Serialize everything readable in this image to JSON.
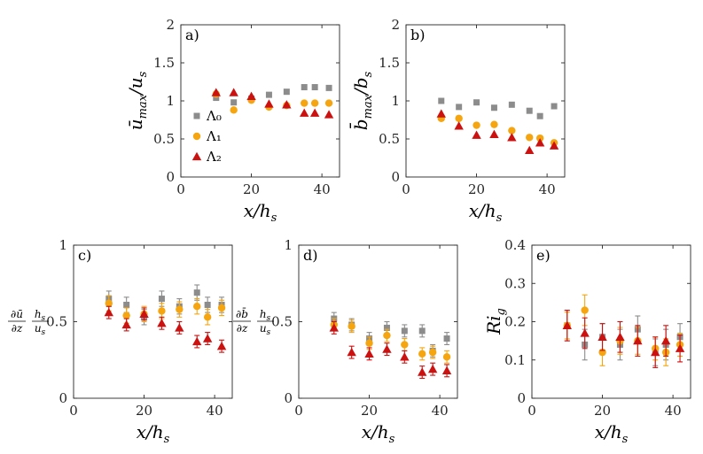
{
  "colors": {
    "L0": "#8c8c8c",
    "L1": "#f5a50f",
    "L2": "#cc1111",
    "axis": "#262626"
  },
  "chart_data": [
    {
      "type": "scatter",
      "panel": "a)",
      "xlabel": "x/h_s",
      "ylabel": "ū_max/u_s",
      "xlim": [
        0,
        45
      ],
      "ylim": [
        0,
        2
      ],
      "xticks": [
        0,
        20,
        40
      ],
      "yticks": [
        0,
        0.5,
        1,
        1.5,
        2
      ],
      "xticklabels": [
        "0",
        "20",
        "40"
      ],
      "yticklabels": [
        "0",
        "0.5",
        "1",
        "1.5",
        "2"
      ],
      "legend": {
        "position": "left",
        "entries": [
          "Λ₀",
          "Λ₁",
          "Λ₂"
        ]
      },
      "series": [
        {
          "name": "Λ₀",
          "marker": "square",
          "x": [
            10,
            15,
            20,
            25,
            30,
            35,
            38,
            42
          ],
          "y": [
            1.04,
            0.98,
            1.03,
            1.08,
            1.12,
            1.18,
            1.18,
            1.17
          ]
        },
        {
          "name": "Λ₁",
          "marker": "circle",
          "x": [
            10,
            15,
            20,
            25,
            30,
            35,
            38,
            42
          ],
          "y": [
            1.09,
            0.88,
            1.01,
            0.92,
            0.94,
            0.97,
            0.97,
            0.97
          ]
        },
        {
          "name": "Λ₂",
          "marker": "triangle",
          "x": [
            10,
            15,
            20,
            25,
            30,
            35,
            38,
            42
          ],
          "y": [
            1.11,
            1.11,
            1.06,
            0.96,
            0.95,
            0.84,
            0.84,
            0.82
          ]
        }
      ]
    },
    {
      "type": "scatter",
      "panel": "b)",
      "xlabel": "x/h_s",
      "ylabel": "b̄_max/b_s",
      "xlim": [
        0,
        45
      ],
      "ylim": [
        0,
        2
      ],
      "xticks": [
        0,
        20,
        40
      ],
      "yticks": [
        0,
        0.5,
        1,
        1.5,
        2
      ],
      "xticklabels": [
        "0",
        "20",
        "40"
      ],
      "yticklabels": [
        "0",
        "0.5",
        "1",
        "1.5",
        "2"
      ],
      "series": [
        {
          "name": "Λ₀",
          "marker": "square",
          "x": [
            10,
            15,
            20,
            25,
            30,
            35,
            38,
            42
          ],
          "y": [
            1.0,
            0.92,
            0.98,
            0.91,
            0.95,
            0.87,
            0.8,
            0.93
          ]
        },
        {
          "name": "Λ₁",
          "marker": "circle",
          "x": [
            10,
            15,
            20,
            25,
            30,
            35,
            38,
            42
          ],
          "y": [
            0.77,
            0.77,
            0.68,
            0.69,
            0.61,
            0.52,
            0.51,
            0.45
          ]
        },
        {
          "name": "Λ₂",
          "marker": "triangle",
          "x": [
            10,
            15,
            20,
            25,
            30,
            35,
            38,
            42
          ],
          "y": [
            0.83,
            0.67,
            0.55,
            0.56,
            0.52,
            0.35,
            0.45,
            0.41
          ]
        }
      ]
    },
    {
      "type": "scatter",
      "panel": "c)",
      "xlabel": "x/h_s",
      "ylabel": "(∂ū/∂z) h_s/u_s",
      "ylabel_parts": {
        "num1": "∂ū",
        "den1": "∂z",
        "num2": "h",
        "num2sub": "s",
        "den2": "u",
        "den2sub": "s"
      },
      "xlim": [
        0,
        45
      ],
      "ylim": [
        0,
        1
      ],
      "xticks": [
        0,
        20,
        40
      ],
      "yticks": [
        0,
        0.5,
        1
      ],
      "xticklabels": [
        "0",
        "20",
        "40"
      ],
      "yticklabels": [
        "0",
        "0.5",
        "1"
      ],
      "errorbars": true,
      "series": [
        {
          "name": "Λ₀",
          "marker": "square",
          "x": [
            10,
            15,
            20,
            25,
            30,
            35,
            38,
            42
          ],
          "y": [
            0.65,
            0.61,
            0.53,
            0.65,
            0.6,
            0.69,
            0.61,
            0.61
          ],
          "err": [
            0.05,
            0.05,
            0.05,
            0.05,
            0.05,
            0.05,
            0.05,
            0.05
          ]
        },
        {
          "name": "Λ₁",
          "marker": "circle",
          "x": [
            10,
            15,
            20,
            25,
            30,
            35,
            38,
            42
          ],
          "y": [
            0.62,
            0.54,
            0.55,
            0.57,
            0.58,
            0.6,
            0.53,
            0.59
          ],
          "err": [
            0.05,
            0.05,
            0.05,
            0.05,
            0.05,
            0.05,
            0.05,
            0.05
          ]
        },
        {
          "name": "Λ₂",
          "marker": "triangle",
          "x": [
            10,
            15,
            20,
            25,
            30,
            35,
            38,
            42
          ],
          "y": [
            0.56,
            0.48,
            0.55,
            0.49,
            0.46,
            0.37,
            0.39,
            0.34
          ],
          "err": [
            0.04,
            0.04,
            0.04,
            0.04,
            0.04,
            0.04,
            0.04,
            0.04
          ]
        }
      ]
    },
    {
      "type": "scatter",
      "panel": "d)",
      "xlabel": "x/h_s",
      "ylabel": "(∂b̄/∂z) h_s/u_s",
      "ylabel_parts": {
        "num1": "∂b̄",
        "den1": "∂z",
        "num2": "h",
        "num2sub": "s",
        "den2": "u",
        "den2sub": "s"
      },
      "xlim": [
        0,
        45
      ],
      "ylim": [
        0,
        1
      ],
      "xticks": [
        0,
        20,
        40
      ],
      "yticks": [
        0,
        0.5,
        1
      ],
      "xticklabels": [
        "0",
        "20",
        "40"
      ],
      "yticklabels": [
        "0",
        "0.5",
        "1"
      ],
      "errorbars": true,
      "series": [
        {
          "name": "Λ₀",
          "marker": "square",
          "x": [
            10,
            15,
            20,
            25,
            30,
            35,
            38,
            42
          ],
          "y": [
            0.52,
            0.48,
            0.39,
            0.46,
            0.44,
            0.44,
            0.31,
            0.39
          ],
          "err": [
            0.04,
            0.04,
            0.04,
            0.04,
            0.04,
            0.04,
            0.04,
            0.04
          ]
        },
        {
          "name": "Λ₁",
          "marker": "circle",
          "x": [
            10,
            15,
            20,
            25,
            30,
            35,
            38,
            42
          ],
          "y": [
            0.48,
            0.47,
            0.36,
            0.41,
            0.35,
            0.29,
            0.3,
            0.27
          ],
          "err": [
            0.04,
            0.04,
            0.04,
            0.04,
            0.04,
            0.04,
            0.04,
            0.04
          ]
        },
        {
          "name": "Λ₂",
          "marker": "triangle",
          "x": [
            10,
            15,
            20,
            25,
            30,
            35,
            38,
            42
          ],
          "y": [
            0.46,
            0.3,
            0.29,
            0.32,
            0.27,
            0.17,
            0.19,
            0.18
          ],
          "err": [
            0.04,
            0.04,
            0.04,
            0.04,
            0.04,
            0.04,
            0.04,
            0.04
          ]
        }
      ]
    },
    {
      "type": "scatter",
      "panel": "e)",
      "xlabel": "x/h_s",
      "ylabel": "Ri_g",
      "xlim": [
        0,
        45
      ],
      "ylim": [
        0,
        0.4
      ],
      "xticks": [
        0,
        20,
        40
      ],
      "yticks": [
        0,
        0.1,
        0.2,
        0.3,
        0.4
      ],
      "xticklabels": [
        "0",
        "20",
        "40"
      ],
      "yticklabels": [
        "0",
        "0.1",
        "0.2",
        "0.3",
        "0.4"
      ],
      "errorbars": true,
      "series": [
        {
          "name": "Λ₀",
          "marker": "square",
          "x": [
            10,
            15,
            20,
            25,
            30,
            35,
            38,
            42
          ],
          "y": [
            0.19,
            0.14,
            0.16,
            0.14,
            0.18,
            0.12,
            0.14,
            0.16
          ],
          "err": [
            0.04,
            0.04,
            0.035,
            0.04,
            0.035,
            0.035,
            0.04,
            0.035
          ]
        },
        {
          "name": "Λ₁",
          "marker": "circle",
          "x": [
            10,
            15,
            20,
            25,
            30,
            35,
            38,
            42
          ],
          "y": [
            0.19,
            0.23,
            0.12,
            0.15,
            0.15,
            0.13,
            0.12,
            0.14
          ],
          "err": [
            0.035,
            0.04,
            0.035,
            0.035,
            0.035,
            0.03,
            0.035,
            0.03
          ]
        },
        {
          "name": "Λ₂",
          "marker": "triangle",
          "x": [
            10,
            15,
            20,
            25,
            30,
            35,
            38,
            42
          ],
          "y": [
            0.19,
            0.17,
            0.16,
            0.16,
            0.15,
            0.12,
            0.15,
            0.13
          ],
          "err": [
            0.04,
            0.04,
            0.035,
            0.04,
            0.04,
            0.04,
            0.04,
            0.035
          ]
        }
      ]
    }
  ]
}
